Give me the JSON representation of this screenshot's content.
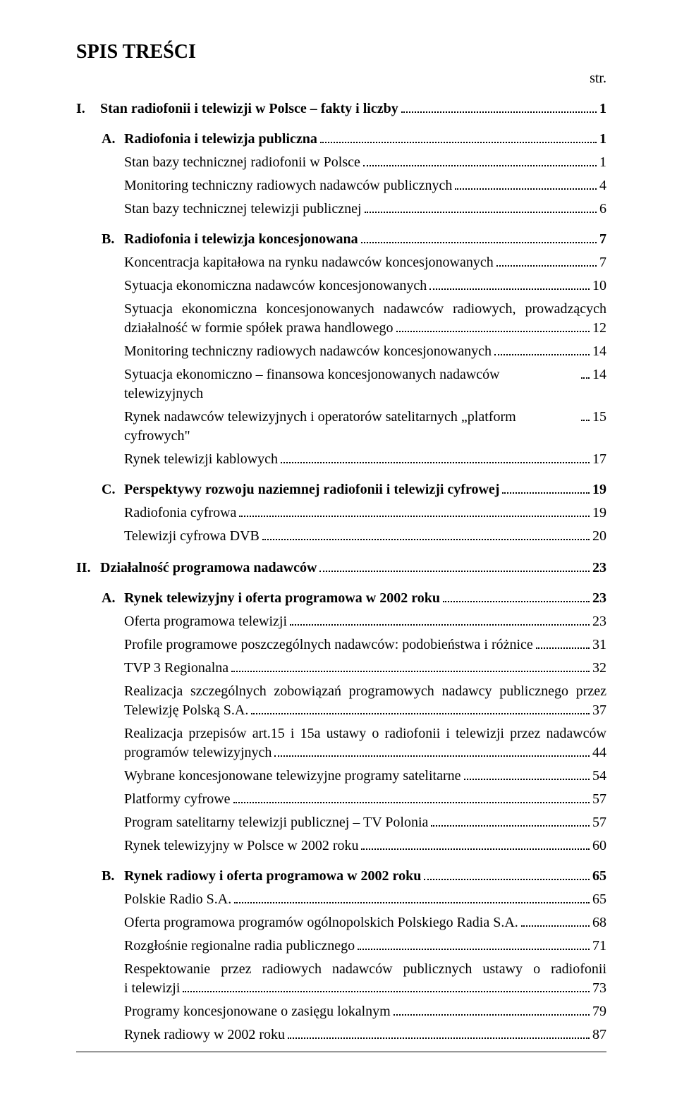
{
  "title": "SPIS  TREŚCI",
  "str_label": "str.",
  "sections": {
    "I": {
      "label": "I.",
      "text": "Stan radiofonii i telewizji w Polsce – fakty i liczby",
      "page": "1",
      "A": {
        "label": "A.",
        "text": "Radiofonia i telewizja publiczna",
        "page": "1",
        "entries": [
          {
            "text": "Stan bazy technicznej radiofonii w Polsce",
            "page": "1"
          },
          {
            "text": "Monitoring techniczny radiowych nadawców publicznych",
            "page": "4"
          },
          {
            "text": "Stan bazy technicznej telewizji publicznej",
            "page": "6"
          }
        ]
      },
      "B": {
        "label": "B.",
        "text": "Radiofonia i telewizja koncesjonowana",
        "page": "7",
        "entries": [
          {
            "text": "Koncentracja kapitałowa na rynku nadawców koncesjonowanych",
            "page": "7"
          },
          {
            "text": "Sytuacja ekonomiczna nadawców koncesjonowanych",
            "page": "10"
          },
          {
            "multi": true,
            "line1": "Sytuacja ekonomiczna koncesjonowanych nadawców radiowych, prowadzących",
            "line2": "działalność w formie spółek prawa handlowego",
            "page": "12"
          },
          {
            "text": "Monitoring techniczny radiowych nadawców koncesjonowanych",
            "page": "14"
          },
          {
            "text": "Sytuacja ekonomiczno – finansowa koncesjonowanych nadawców telewizyjnych",
            "page": "14"
          },
          {
            "text": "Rynek nadawców telewizyjnych i operatorów satelitarnych „platform cyfrowych\"",
            "page": "15"
          },
          {
            "text": "Rynek telewizji kablowych",
            "page": "17"
          }
        ]
      },
      "C": {
        "label": "C.",
        "text": "Perspektywy rozwoju naziemnej radiofonii i telewizji cyfrowej",
        "page": "19",
        "entries": [
          {
            "text": "Radiofonia cyfrowa",
            "page": "19"
          },
          {
            "text": "Telewizji cyfrowa DVB",
            "page": "20"
          }
        ]
      }
    },
    "II": {
      "label": "II.",
      "text": "Działalność programowa nadawców",
      "page": "23",
      "A": {
        "label": "A.",
        "text": "Rynek telewizyjny i oferta programowa w 2002 roku",
        "page": "23",
        "entries": [
          {
            "text": "Oferta programowa telewizji",
            "page": "23"
          },
          {
            "text": "Profile programowe poszczególnych nadawców: podobieństwa i różnice",
            "page": "31"
          },
          {
            "text": "TVP 3 Regionalna",
            "page": "32"
          },
          {
            "multi": true,
            "line1": "Realizacja szczególnych zobowiązań programowych nadawcy publicznego przez",
            "line2": "Telewizję Polską S.A.",
            "page": "37"
          },
          {
            "multi": true,
            "line1": "Realizacja przepisów art.15 i 15a ustawy o radiofonii i telewizji przez nadawców",
            "line2": "programów telewizyjnych",
            "page": "44"
          },
          {
            "text": "Wybrane koncesjonowane telewizyjne programy satelitarne",
            "page": "54"
          },
          {
            "text": "Platformy cyfrowe",
            "page": "57"
          },
          {
            "text": "Program satelitarny telewizji publicznej – TV Polonia",
            "page": "57"
          },
          {
            "text": "Rynek telewizyjny w Polsce w 2002 roku",
            "page": "60"
          }
        ]
      },
      "B": {
        "label": "B.",
        "text": "Rynek radiowy i oferta programowa w 2002 roku",
        "page": "65",
        "entries": [
          {
            "text": "Polskie Radio S.A.",
            "page": "65"
          },
          {
            "text": "Oferta programowa programów ogólnopolskich Polskiego Radia S.A.",
            "page": "68"
          },
          {
            "text": "Rozgłośnie regionalne radia publicznego",
            "page": "71"
          },
          {
            "multi": true,
            "line1": "Respektowanie przez radiowych nadawców publicznych ustawy o radiofonii",
            "line2": "i telewizji",
            "page": "73"
          },
          {
            "text": "Programy koncesjonowane o zasięgu lokalnym",
            "page": "79",
            "spaced": true
          },
          {
            "text": "Rynek radiowy w 2002 roku",
            "page": "87",
            "spaced": true
          }
        ]
      }
    }
  }
}
